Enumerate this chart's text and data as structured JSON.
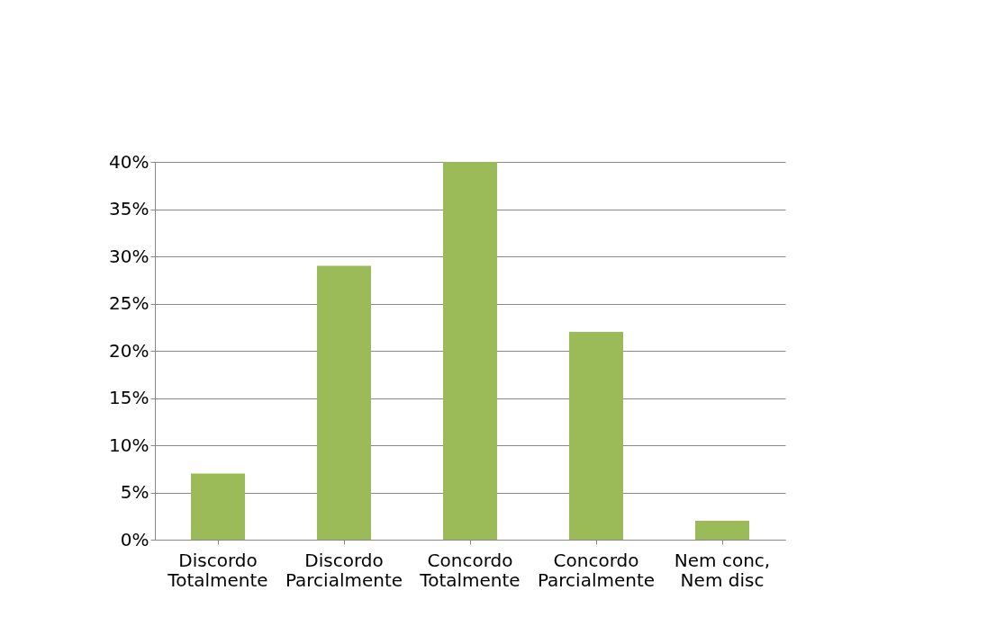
{
  "chart_data": {
    "type": "bar",
    "categories": [
      "Discordo Totalmente",
      "Discordo Parcialmente",
      "Concordo Totalmente",
      "Concordo Parcialmente",
      "Nem conc, Nem disc"
    ],
    "values": [
      7,
      29,
      40,
      22,
      2
    ],
    "color": "#9bbb59",
    "ylim": [
      0,
      40
    ],
    "yticks": [
      {
        "value": 0,
        "label": "0%"
      },
      {
        "value": 5,
        "label": "5%"
      },
      {
        "value": 10,
        "label": "10%"
      },
      {
        "value": 15,
        "label": "15%"
      },
      {
        "value": 20,
        "label": "20%"
      },
      {
        "value": 25,
        "label": "25%"
      },
      {
        "value": 30,
        "label": "30%"
      },
      {
        "value": 35,
        "label": "35%"
      },
      {
        "value": 40,
        "label": "40%"
      }
    ],
    "grid": "y"
  }
}
